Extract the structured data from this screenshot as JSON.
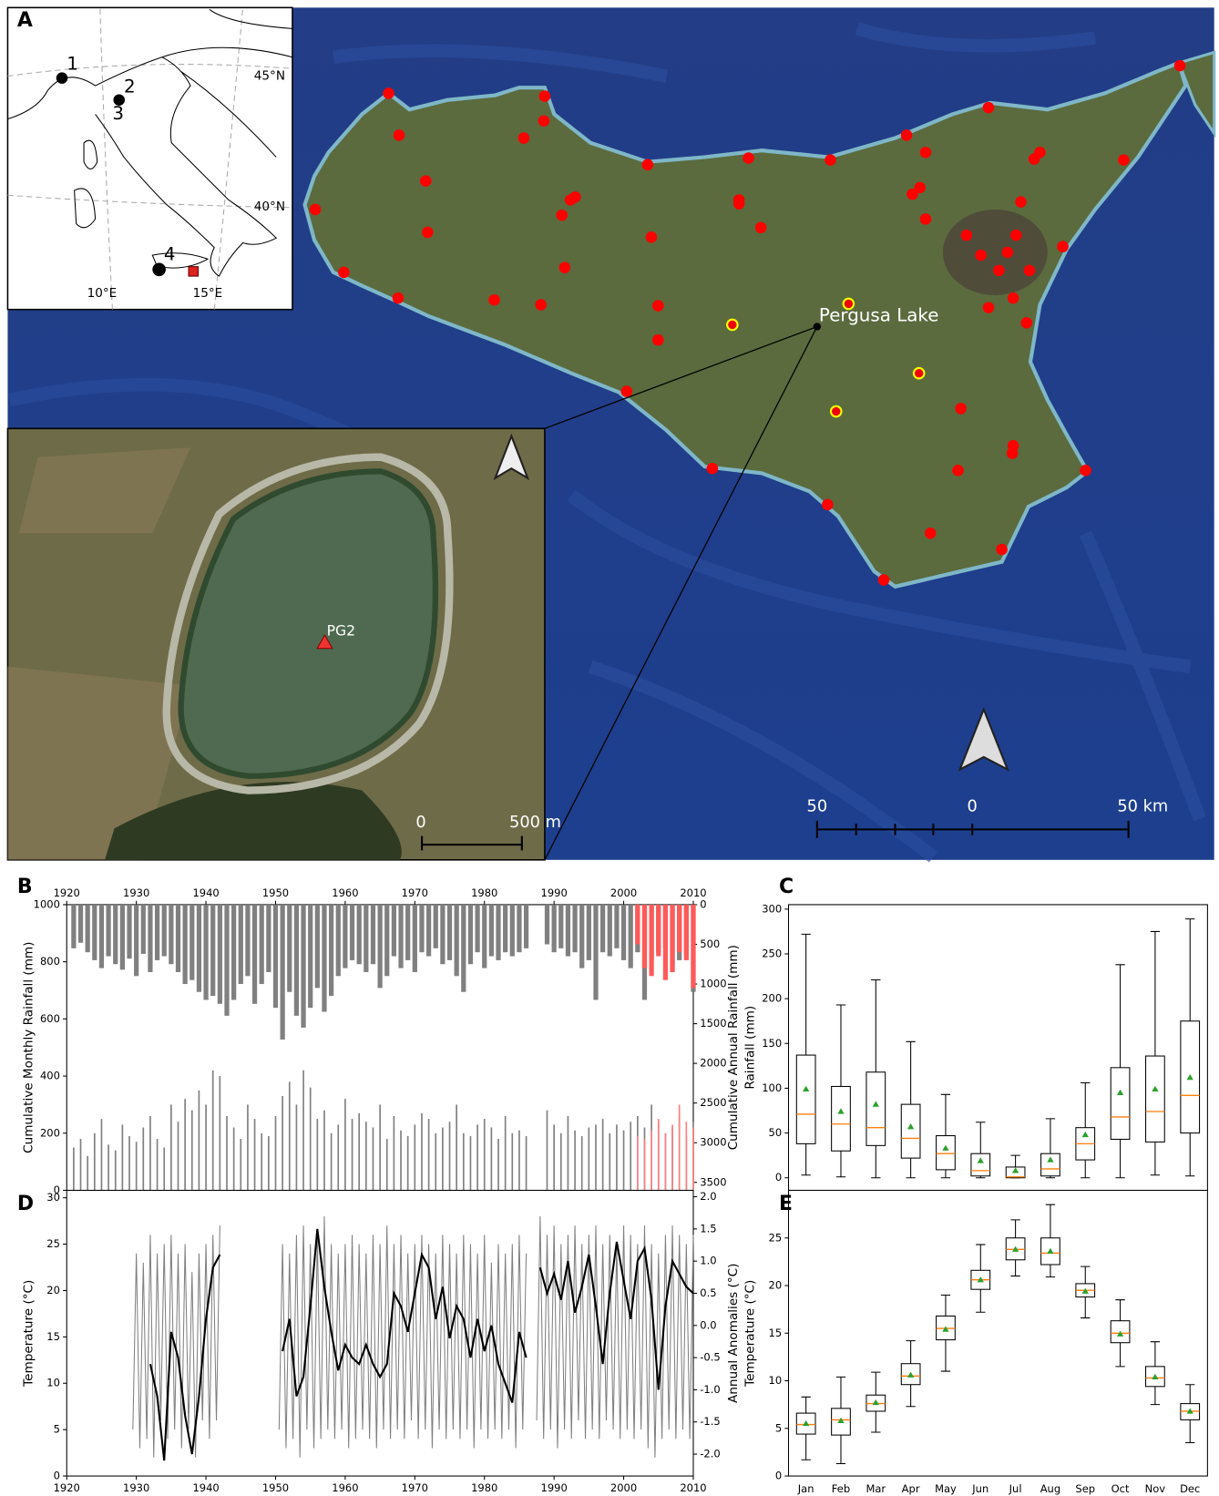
{
  "map": {
    "panel": "A",
    "site_numbers": [
      "1",
      "2",
      "3",
      "4"
    ],
    "lat_labels": [
      "45°N",
      "40°N"
    ],
    "lon_labels": [
      "10°E",
      "15°E"
    ],
    "site_label": "Pergusa Lake",
    "core_label": "PG2",
    "lake_scale": [
      "0",
      "500 m"
    ],
    "map_scale": [
      "50",
      "0",
      "50 km"
    ]
  },
  "chart_data": [
    {
      "panel": "B",
      "type": "bar",
      "ylabel": "Cumulative Monthly Rainfall (mm)",
      "y2label": "Cumulative Annual Rainfall (mm)",
      "xlim": [
        1920,
        2010
      ],
      "xticks": [
        1920,
        1930,
        1940,
        1950,
        1960,
        1970,
        1980,
        1990,
        2000,
        2010
      ],
      "ylim": [
        0,
        1000
      ],
      "yticks": [
        0,
        200,
        400,
        600,
        800,
        1000
      ],
      "y2lim": [
        3600,
        0
      ],
      "y2ticks": [
        0,
        500,
        1000,
        1500,
        2000,
        2500,
        3000,
        3500
      ],
      "x": [
        1921,
        1922,
        1923,
        1924,
        1925,
        1926,
        1927,
        1928,
        1929,
        1930,
        1931,
        1932,
        1933,
        1934,
        1935,
        1936,
        1937,
        1938,
        1939,
        1940,
        1941,
        1942,
        1943,
        1944,
        1945,
        1946,
        1947,
        1948,
        1949,
        1950,
        1951,
        1952,
        1953,
        1954,
        1955,
        1956,
        1957,
        1958,
        1959,
        1960,
        1961,
        1962,
        1963,
        1964,
        1965,
        1966,
        1967,
        1968,
        1969,
        1970,
        1971,
        1972,
        1973,
        1974,
        1975,
        1976,
        1977,
        1978,
        1979,
        1980,
        1981,
        1982,
        1983,
        1984,
        1985,
        1986,
        1987,
        1988,
        1989,
        1990,
        1991,
        1992,
        1993,
        1994,
        1995,
        1996,
        1997,
        1998,
        1999,
        2000,
        2001,
        2002,
        2003,
        2004,
        2005,
        2006,
        2007,
        2008,
        2009,
        2010
      ],
      "series": [
        {
          "color": "#808080",
          "axis": "y2",
          "values": [
            550,
            480,
            600,
            700,
            800,
            650,
            750,
            820,
            680,
            900,
            620,
            850,
            700,
            650,
            750,
            850,
            1000,
            950,
            1100,
            1200,
            1150,
            1250,
            1400,
            1200,
            1000,
            900,
            1250,
            1000,
            850,
            1300,
            1700,
            1100,
            1400,
            1550,
            1300,
            1050,
            1350,
            1150,
            900,
            800,
            700,
            750,
            850,
            750,
            1050,
            900,
            650,
            800,
            700,
            850,
            600,
            650,
            550,
            750,
            700,
            900,
            1100,
            750,
            600,
            800,
            650,
            700,
            600,
            650,
            600,
            550,
            null,
            null,
            500,
            600,
            550,
            650,
            600,
            800,
            700,
            1200,
            600,
            650,
            550,
            700,
            800,
            600,
            1200,
            700,
            600,
            550,
            800,
            700,
            650,
            1100
          ]
        },
        {
          "color": "#ff5a5a",
          "axis": "y2",
          "x": [
            2002,
            2003,
            2004,
            2005,
            2006,
            2007,
            2008,
            2009,
            2010
          ],
          "values": [
            500,
            800,
            900,
            650,
            950,
            850,
            600,
            700,
            1050
          ]
        },
        {
          "color": "#808080",
          "values": [
            150,
            180,
            120,
            200,
            250,
            160,
            140,
            230,
            190,
            170,
            220,
            260,
            180,
            150,
            300,
            240,
            320,
            280,
            350,
            300,
            420,
            400,
            260,
            220,
            180,
            300,
            250,
            200,
            190,
            260,
            330,
            380,
            300,
            420,
            360,
            250,
            280,
            200,
            230,
            320,
            250,
            270,
            240,
            220,
            300,
            180,
            260,
            210,
            190,
            230,
            270,
            250,
            200,
            220,
            240,
            300,
            200,
            190,
            230,
            250,
            220,
            180,
            260,
            200,
            210,
            190,
            null,
            null,
            280,
            230,
            200,
            260,
            210,
            190,
            220,
            230,
            250,
            200,
            230,
            210,
            240,
            260,
            220,
            300,
            240,
            200,
            220,
            260,
            190,
            240
          ]
        },
        {
          "color": "#ff8080",
          "x": [
            2002,
            2003,
            2004,
            2005,
            2006,
            2007,
            2008,
            2009,
            2010
          ],
          "values": [
            190,
            180,
            210,
            250,
            200,
            230,
            300,
            240,
            220
          ]
        }
      ]
    },
    {
      "panel": "D",
      "type": "line",
      "ylabel": "Temperature (°C)",
      "y2label": "Annual Anomalies (°C)",
      "xlim": [
        1920,
        2010
      ],
      "xticks": [
        1920,
        1930,
        1940,
        1950,
        1960,
        1970,
        1980,
        1990,
        2000,
        2010
      ],
      "ylim": [
        0,
        30.8
      ],
      "yticks": [
        0,
        5,
        10,
        15,
        20,
        25,
        30
      ],
      "y2lim": [
        -2.34,
        2.1
      ],
      "y2ticks": [
        {
          "value": -2,
          "label": "-2.0"
        },
        -1.5,
        {
          "value": -1,
          "label": "-1.0"
        },
        -0.5,
        {
          "value": 0,
          "label": "0.0"
        },
        0.5,
        {
          "value": 1,
          "label": "1.0"
        },
        1.5,
        {
          "value": 2,
          "label": "2.0"
        }
      ],
      "series": [
        {
          "color": "#808080",
          "x": [
            1929.5,
            1930,
            1930.5,
            1931,
            1931.5,
            1932,
            1932.5,
            1933,
            1933.5,
            1934,
            1934.5,
            1935,
            1935.5,
            1936,
            1936.5,
            1937,
            1937.5,
            1938,
            1938.5,
            1939,
            1939.5,
            1940,
            1940.5,
            1941,
            1941.5,
            1942,
            null,
            1950.5,
            1951,
            1951.5,
            1952,
            1952.5,
            1953,
            1953.5,
            1954,
            1954.5,
            1955,
            1955.5,
            1956,
            1956.5,
            1957,
            1957.5,
            1958,
            1958.5,
            1959,
            1959.5,
            1960,
            1960.5,
            1961,
            1961.5,
            1962,
            1962.5,
            1963,
            1963.5,
            1964,
            1964.5,
            1965,
            1965.5,
            1966,
            1966.5,
            1967,
            1967.5,
            1968,
            1968.5,
            1969,
            1969.5,
            1970,
            1970.5,
            1971,
            1971.5,
            1972,
            1972.5,
            1973,
            1973.5,
            1974,
            1974.5,
            1975,
            1975.5,
            1976,
            1976.5,
            1977,
            1977.5,
            1978,
            1978.5,
            1979,
            1979.5,
            1980,
            1980.5,
            1981,
            1981.5,
            1982,
            1982.5,
            1983,
            1983.5,
            1984,
            1984.5,
            1985,
            1985.5,
            1986,
            null,
            1987.5,
            1988,
            1988.5,
            1989,
            1989.5,
            1990,
            1990.5,
            1991,
            1991.5,
            1992,
            1992.5,
            1993,
            1993.5,
            1994,
            1994.5,
            1995,
            1995.5,
            1996,
            1996.5,
            1997,
            1997.5,
            1998,
            1998.5,
            1999,
            1999.5,
            2000,
            2000.5,
            2001,
            2001.5,
            2002,
            2002.5,
            2003,
            2003.5,
            2004,
            2004.5,
            2005,
            2005.5,
            2006,
            2006.5,
            2007,
            2007.5,
            2008,
            2008.5,
            2009,
            2009.5,
            2010
          ],
          "values": [
            5,
            24,
            3,
            23,
            4,
            26,
            2,
            24,
            6,
            25,
            4,
            26,
            5,
            24,
            3,
            25,
            5,
            22,
            2,
            24,
            6,
            25,
            4,
            26,
            6,
            27,
            null,
            5,
            25,
            3,
            24,
            4,
            26,
            2,
            27,
            5,
            25,
            3,
            26,
            4,
            28,
            5,
            25,
            4,
            24,
            5,
            25,
            3,
            26,
            4,
            25,
            5,
            24,
            4,
            26,
            3,
            25,
            5,
            27,
            4,
            25,
            5,
            26,
            4,
            24,
            6,
            25,
            4,
            26,
            5,
            25,
            3,
            24,
            5,
            26,
            4,
            25,
            5,
            24,
            4,
            26,
            5,
            25,
            3,
            24,
            5,
            26,
            4,
            23,
            5,
            25,
            4,
            24,
            5,
            25,
            3,
            26,
            5,
            24,
            null,
            6,
            28,
            4,
            26,
            5,
            27,
            3,
            25,
            5,
            26,
            4,
            27,
            6,
            25,
            4,
            26,
            5,
            27,
            4,
            25,
            6,
            26,
            5,
            25,
            4,
            27,
            5,
            26,
            4,
            25,
            5,
            27,
            3,
            25,
            2,
            24,
            4,
            26,
            5,
            27,
            4,
            26,
            5,
            25,
            4,
            26
          ]
        },
        {
          "color": "#000000",
          "axis": "y2",
          "x": [
            1932,
            1933,
            1934,
            1935,
            1936,
            1937,
            1938,
            1939,
            1940,
            1941,
            1942,
            null,
            1951,
            1952,
            1953,
            1954,
            1955,
            1956,
            1957,
            1958,
            1959,
            1960,
            1961,
            1962,
            1963,
            1964,
            1965,
            1966,
            1967,
            1968,
            1969,
            1970,
            1971,
            1972,
            1973,
            1974,
            1975,
            1976,
            1977,
            1978,
            1979,
            1980,
            1981,
            1982,
            1983,
            1984,
            1985,
            1986,
            null,
            1988,
            1989,
            1990,
            1991,
            1992,
            1993,
            1994,
            1995,
            1996,
            1997,
            1998,
            1999,
            2000,
            2001,
            2002,
            2003,
            2004,
            2005,
            2006,
            2007,
            2008,
            2009,
            2010
          ],
          "values": [
            -0.6,
            -1.1,
            -2.1,
            -0.1,
            -0.5,
            -1.4,
            -2.0,
            -1.1,
            0.1,
            0.9,
            1.1,
            null,
            -0.4,
            0.1,
            -1.1,
            -0.8,
            0.3,
            1.5,
            0.6,
            -0.1,
            -0.7,
            -0.3,
            -0.5,
            -0.6,
            -0.3,
            -0.6,
            -0.8,
            -0.6,
            0.5,
            0.3,
            -0.1,
            0.5,
            1.1,
            0.9,
            0.1,
            0.6,
            -0.2,
            0.3,
            0.1,
            -0.5,
            0.1,
            -0.4,
            0.0,
            -0.6,
            -0.9,
            -1.2,
            -0.1,
            -0.5,
            null,
            0.9,
            0.5,
            0.8,
            0.4,
            1.0,
            0.2,
            0.6,
            1.1,
            0.3,
            -0.6,
            0.5,
            1.3,
            0.7,
            0.1,
            1.0,
            1.2,
            0.4,
            -1.0,
            0.3,
            1.0,
            0.8,
            0.6,
            0.5
          ]
        }
      ]
    },
    {
      "panel": "C",
      "type": "box",
      "ylabel": "Rainfall (mm)",
      "ylim": [
        -14,
        305
      ],
      "yticks": [
        0,
        50,
        100,
        150,
        200,
        250,
        300
      ],
      "median_color": "#ff7f0e",
      "mean_color": "#2ca02c",
      "whisker_low": [
        3,
        1,
        0,
        0,
        0,
        0,
        0,
        0,
        0,
        0,
        3,
        2
      ],
      "q1": [
        38,
        30,
        36,
        22,
        9,
        2,
        0,
        2,
        20,
        43,
        40,
        50
      ],
      "median": [
        71,
        60,
        56,
        44,
        27,
        8,
        1,
        10,
        38,
        68,
        74,
        92
      ],
      "q3": [
        137,
        102,
        118,
        82,
        47,
        27,
        12,
        27,
        56,
        123,
        136,
        175
      ],
      "whisker_high": [
        272,
        193,
        221,
        152,
        93,
        62,
        25,
        66,
        106,
        238,
        275,
        289
      ],
      "mean": [
        99,
        74,
        82,
        57,
        33,
        19,
        8,
        20,
        48,
        95,
        99,
        112
      ]
    },
    {
      "panel": "E",
      "type": "box",
      "ylabel": "Temperature (°C)",
      "ylim": [
        0,
        30
      ],
      "yticks": [
        0,
        5,
        10,
        15,
        20,
        25
      ],
      "categories": [
        "Jan",
        "Feb",
        "Mar",
        "Apr",
        "May",
        "Jun",
        "Jul",
        "Aug",
        "Sep",
        "Oct",
        "Nov",
        "Dec"
      ],
      "median_color": "#ff7f0e",
      "mean_color": "#2ca02c",
      "whisker_low": [
        1.7,
        1.3,
        4.6,
        7.3,
        11,
        17.2,
        21,
        20.9,
        16.6,
        11.5,
        7.5,
        3.5
      ],
      "q1": [
        4.4,
        4.3,
        6.8,
        9.6,
        14.3,
        19.6,
        22.7,
        22.2,
        18.8,
        14,
        9.4,
        5.9
      ],
      "median": [
        5.4,
        5.9,
        7.6,
        10.5,
        15.5,
        20.6,
        23.8,
        23.4,
        19.5,
        15,
        10.3,
        6.8
      ],
      "q3": [
        6.6,
        7.1,
        8.5,
        11.8,
        16.8,
        21.6,
        25,
        25,
        20.2,
        16.3,
        11.5,
        7.6
      ],
      "whisker_high": [
        8.3,
        10.4,
        10.9,
        14.2,
        19,
        24.3,
        26.9,
        28.5,
        22,
        18.5,
        14.1,
        9.6
      ],
      "mean": [
        5.5,
        5.8,
        7.7,
        10.6,
        15.4,
        20.6,
        23.8,
        23.6,
        19.4,
        14.9,
        10.4,
        6.8
      ]
    }
  ]
}
